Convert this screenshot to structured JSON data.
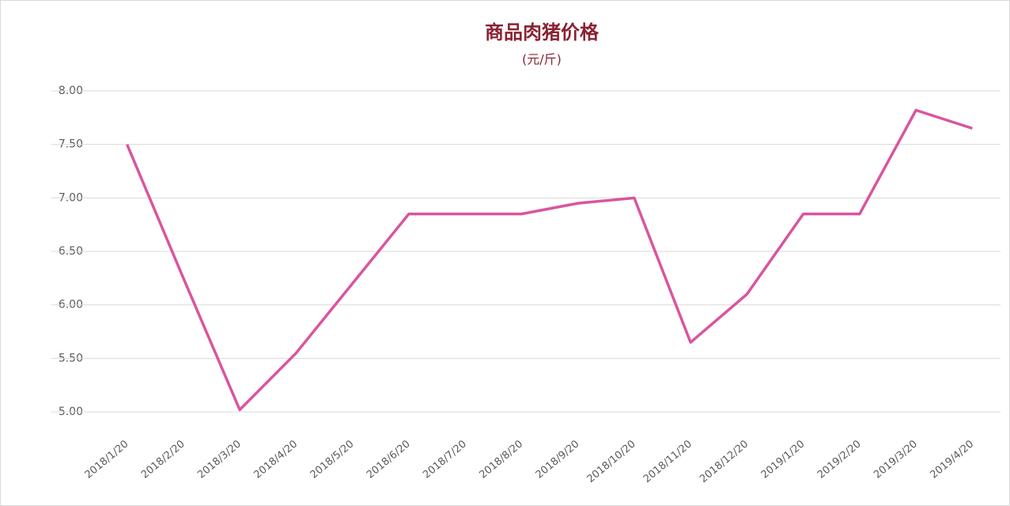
{
  "chart_data": {
    "type": "line",
    "title": "商品肉猪价格",
    "subtitle": "(元/斤)",
    "categories": [
      "2018/1/20",
      "2018/2/20",
      "2018/3/20",
      "2018/4/20",
      "2018/5/20",
      "2018/6/20",
      "2018/7/20",
      "2018/8/20",
      "2018/9/20",
      "2018/10/20",
      "2018/11/20",
      "2018/12/20",
      "2019/1/20",
      "2019/2/20",
      "2019/3/20",
      "2019/4/20"
    ],
    "series": [
      {
        "name": "商品肉猪价格",
        "color": "#d9559f",
        "values": [
          7.5,
          6.25,
          5.02,
          5.55,
          6.2,
          6.85,
          6.85,
          6.85,
          6.95,
          7.0,
          5.65,
          6.1,
          6.85,
          6.85,
          7.82,
          7.65
        ]
      }
    ],
    "ylim": [
      5,
      8
    ],
    "yticks": [
      {
        "value": 5,
        "label": "5.00"
      },
      {
        "value": 5.5,
        "label": "5.50"
      },
      {
        "value": 6,
        "label": "6.00"
      },
      {
        "value": 6.5,
        "label": "6.50"
      },
      {
        "value": 7,
        "label": "7.00"
      },
      {
        "value": 7.5,
        "label": "7.50"
      },
      {
        "value": 8,
        "label": "8.00"
      }
    ],
    "grid": true
  }
}
